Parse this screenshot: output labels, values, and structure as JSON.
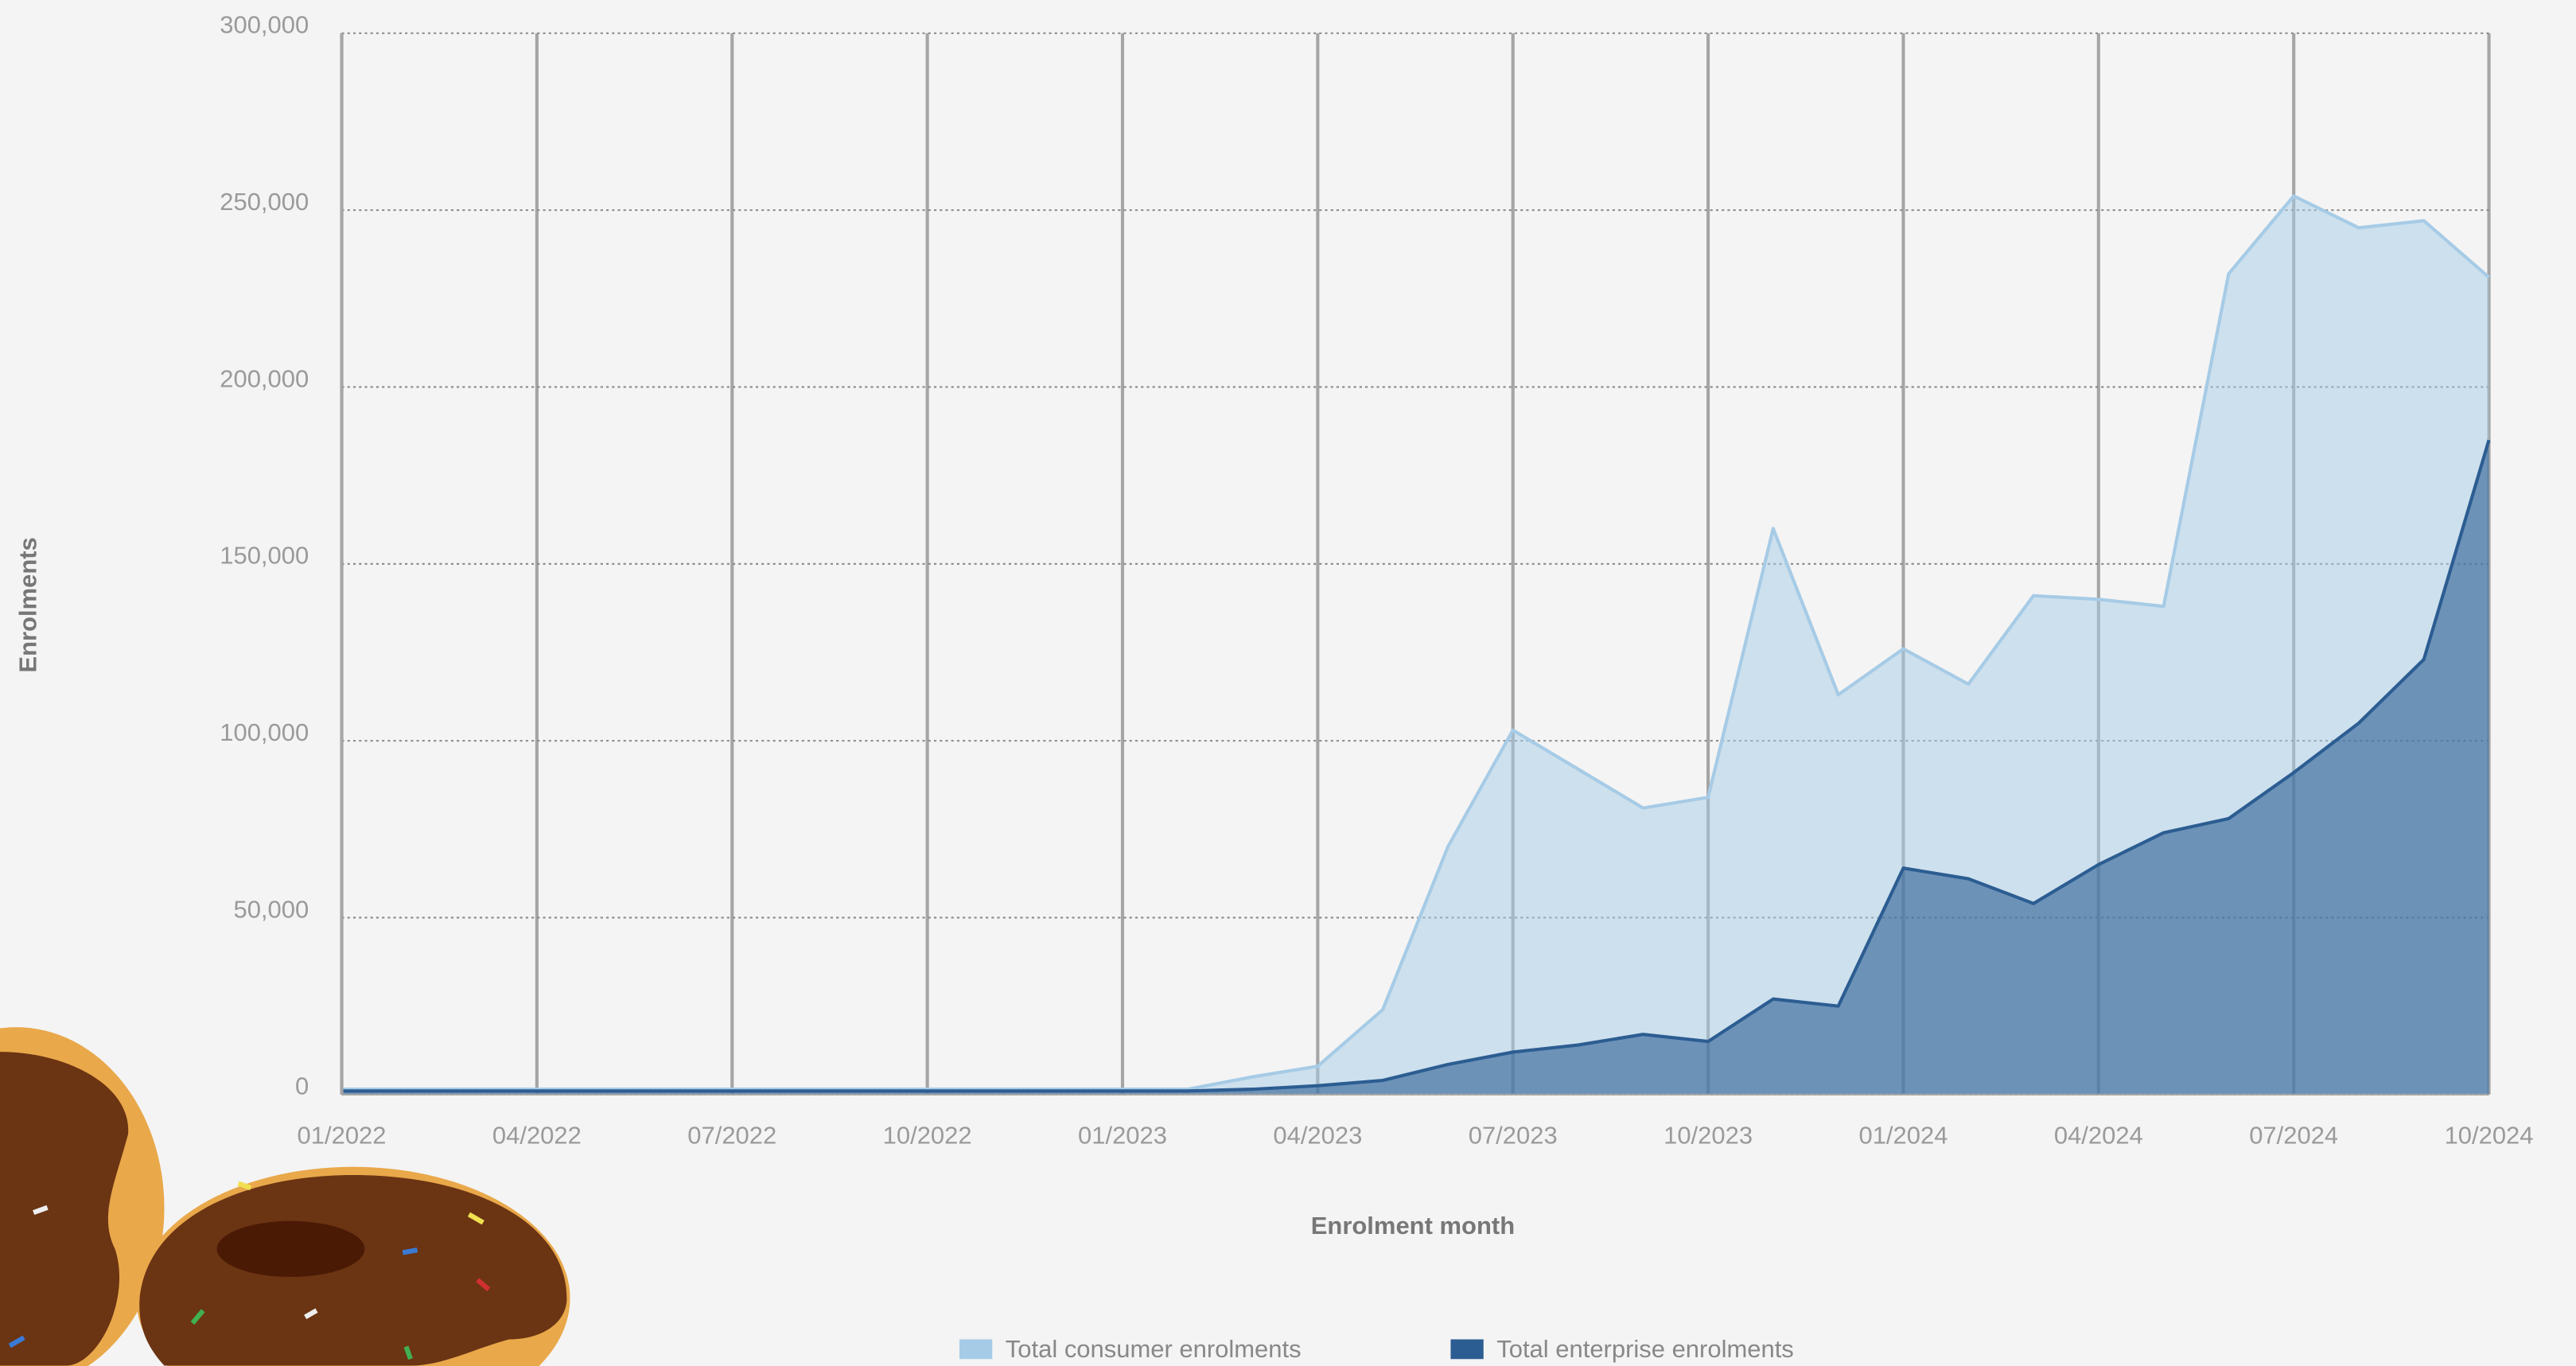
{
  "chart_data": {
    "type": "area",
    "x_label": "Enrolment month",
    "y_label": "Enrolments",
    "categories": [
      "01/2022",
      null,
      null,
      "04/2022",
      null,
      null,
      "07/2022",
      null,
      null,
      "10/2022",
      null,
      null,
      "01/2023",
      null,
      null,
      "04/2023",
      null,
      null,
      "07/2023",
      null,
      null,
      "10/2023",
      null,
      null,
      "01/2024",
      null,
      null,
      "04/2024",
      null,
      null,
      "07/2024",
      null,
      null,
      "10/2024"
    ],
    "series": [
      {
        "name": "Total consumer enrolments",
        "color": "#a6cbe6",
        "values": [
          1500,
          1500,
          1500,
          1500,
          1500,
          1500,
          1500,
          1500,
          1500,
          1500,
          1500,
          1500,
          1500,
          1500,
          5000,
          8000,
          24000,
          70000,
          103000,
          92000,
          81000,
          84000,
          160000,
          113000,
          126000,
          116000,
          141000,
          140000,
          138000,
          232000,
          254000,
          245000,
          247000,
          231000
        ]
      },
      {
        "name": "Total enterprise enrolments",
        "color": "#2c5d92",
        "values": [
          1000,
          1000,
          1000,
          1000,
          1000,
          1000,
          1000,
          1000,
          1000,
          1000,
          1000,
          1000,
          1000,
          1000,
          1500,
          2500,
          4000,
          8500,
          12000,
          14000,
          17000,
          15000,
          27000,
          25000,
          64000,
          61000,
          54000,
          65000,
          74000,
          78000,
          91000,
          105000,
          123000,
          185000
        ]
      }
    ],
    "ylim": [
      0,
      300000
    ],
    "yticks": [
      {
        "value": 0,
        "label": "0"
      },
      {
        "value": 50000,
        "label": "50,000"
      },
      {
        "value": 100000,
        "label": "100,000"
      },
      {
        "value": 150000,
        "label": "150,000"
      },
      {
        "value": 200000,
        "label": "200,000"
      },
      {
        "value": 250000,
        "label": "250,000"
      },
      {
        "value": 300000,
        "label": "300,000"
      }
    ],
    "grid": true
  }
}
